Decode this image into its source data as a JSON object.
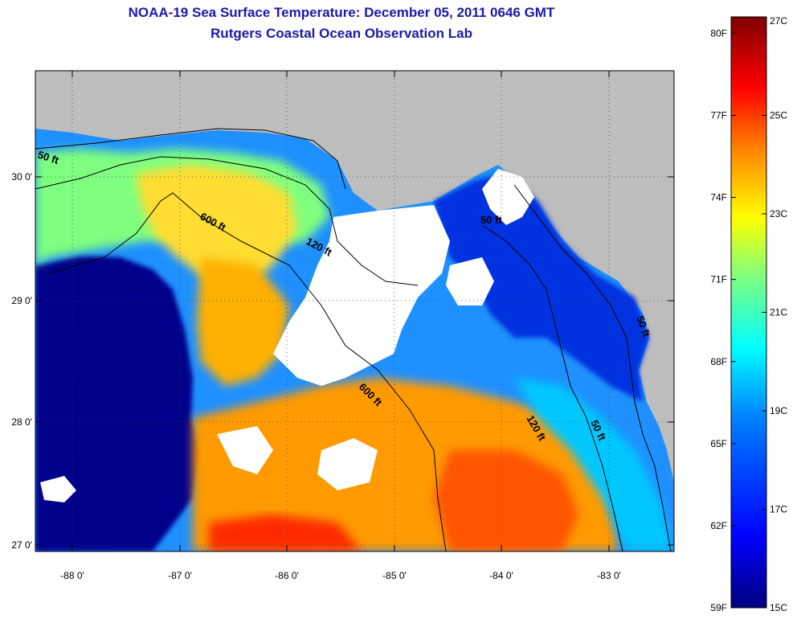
{
  "title": {
    "line1": "NOAA-19 Sea Surface Temperature:  December 05, 2011 0646 GMT",
    "line2": "Rutgers Coastal Ocean Observation Lab"
  },
  "map": {
    "x_ticks": [
      "-88 0'",
      "-87 0'",
      "-86 0'",
      "-85 0'",
      "-84 0'",
      "-83 0'"
    ],
    "y_ticks": [
      "30 0'",
      "29 0'",
      "28 0'",
      "27 0'"
    ],
    "contour_labels": [
      "50 ft",
      "600 ft",
      "120 ft",
      "600 ft",
      "120 ft",
      "50 ft",
      "50 ft",
      "50 ft"
    ],
    "land_color": "#bdbdbd",
    "cloud_color": "#ffffff"
  },
  "colorbar": {
    "celsius_labels": [
      "27C",
      "25C",
      "23C",
      "21C",
      "19C",
      "17C",
      "15C"
    ],
    "fahrenheit_labels": [
      "80F",
      "77F",
      "74F",
      "71F",
      "68F",
      "65F",
      "62F",
      "59F"
    ],
    "min_c": 15,
    "max_c": 27,
    "colors": [
      "#00007f",
      "#0000ff",
      "#007fff",
      "#00ffff",
      "#7fff7f",
      "#ffff00",
      "#ff7f00",
      "#ff0000",
      "#7f0000"
    ]
  }
}
